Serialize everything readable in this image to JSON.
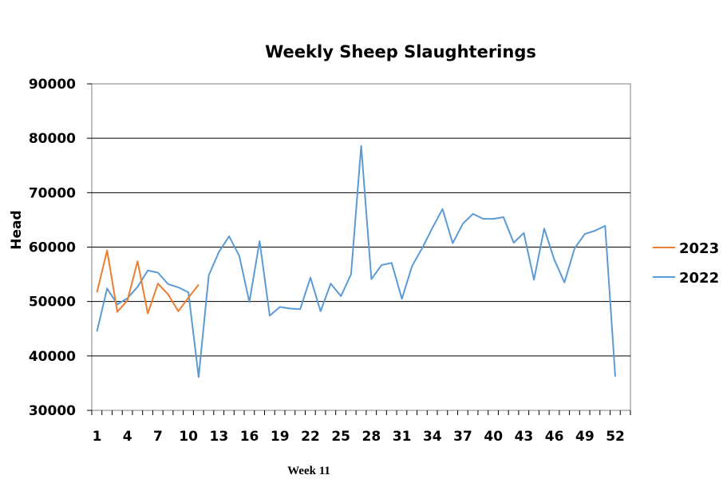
{
  "chart_data": {
    "type": "line",
    "title": "Weekly Sheep Slaughterings",
    "ylabel": "Head",
    "xlabel": "",
    "ylim": [
      30000,
      90000
    ],
    "yticks": [
      30000,
      40000,
      50000,
      60000,
      70000,
      80000,
      90000
    ],
    "xlim": [
      1,
      53
    ],
    "xticks": [
      1,
      4,
      7,
      10,
      13,
      16,
      19,
      22,
      25,
      28,
      31,
      34,
      37,
      40,
      43,
      46,
      49,
      52
    ],
    "grid": "horizontal",
    "legend_position": "right",
    "series": [
      {
        "name": "2023",
        "color": "#ED7D31",
        "x": [
          1,
          2,
          3,
          4,
          5,
          6,
          7,
          8,
          9,
          10,
          11
        ],
        "values": [
          51700,
          59400,
          48100,
          50200,
          57400,
          47800,
          53300,
          51300,
          48200,
          50700,
          53100
        ]
      },
      {
        "name": "2022",
        "color": "#5B9BD5",
        "x": [
          1,
          2,
          3,
          4,
          5,
          6,
          7,
          8,
          9,
          10,
          11,
          12,
          13,
          14,
          15,
          16,
          17,
          18,
          19,
          20,
          21,
          22,
          23,
          24,
          25,
          26,
          27,
          28,
          29,
          30,
          31,
          32,
          33,
          34,
          35,
          36,
          37,
          38,
          39,
          40,
          41,
          42,
          43,
          44,
          45,
          46,
          47,
          48,
          49,
          50,
          51,
          52
        ],
        "values": [
          44500,
          52400,
          49500,
          50600,
          52700,
          55700,
          55300,
          53200,
          52600,
          51700,
          36100,
          54800,
          59100,
          62000,
          58400,
          49900,
          61100,
          47400,
          49000,
          48700,
          48600,
          54400,
          48200,
          53300,
          51000,
          55000,
          78600,
          54100,
          56700,
          57100,
          50500,
          56500,
          59800,
          63500,
          67000,
          60700,
          64300,
          66100,
          65200,
          65200,
          65500,
          60800,
          62600,
          54000,
          63400,
          57700,
          53500,
          59800,
          62400,
          63000,
          63900,
          36200
        ]
      }
    ],
    "footnote": "Week 11"
  }
}
